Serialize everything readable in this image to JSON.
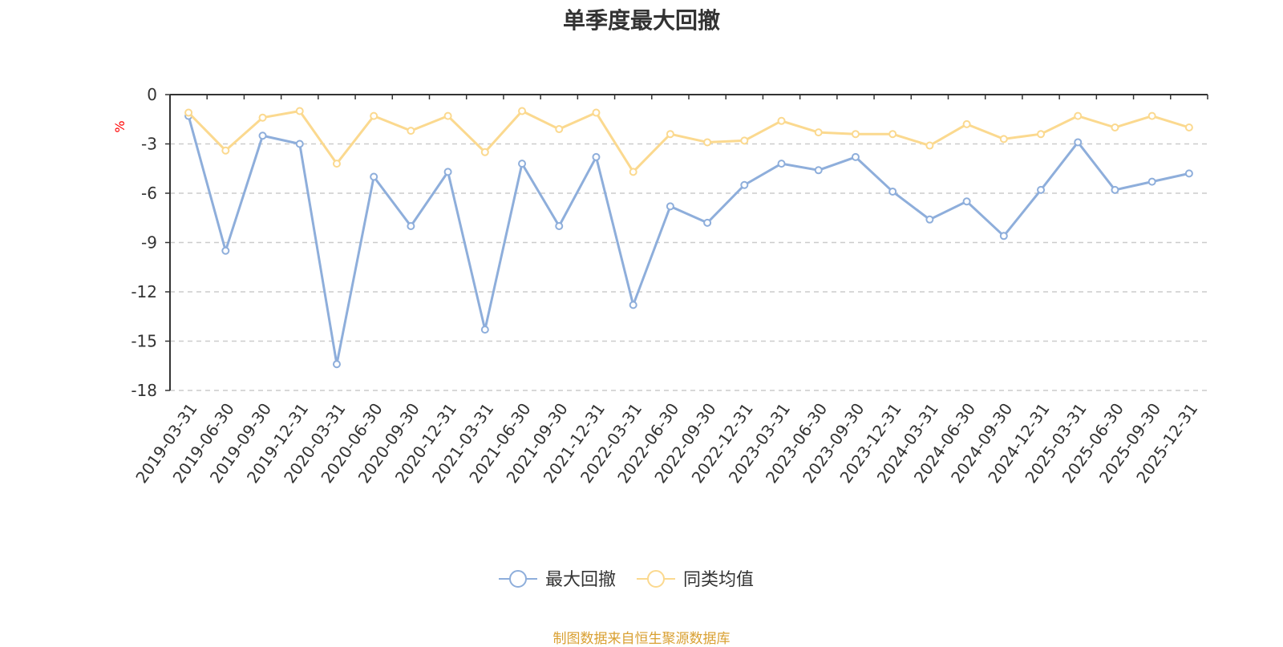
{
  "title": "单季度最大回撤",
  "footer": "制图数据来自恒生聚源数据库",
  "chart_data": {
    "type": "line",
    "title": "单季度最大回撤",
    "ylabel": "%",
    "xlabel": "",
    "ylim": [
      -18,
      0
    ],
    "yticks": [
      0,
      -3,
      -6,
      -9,
      -12,
      -15,
      -18
    ],
    "grid": true,
    "legend_position": "bottom-center",
    "categories": [
      "2019-03-31",
      "2019-06-30",
      "2019-09-30",
      "2019-12-31",
      "2020-03-31",
      "2020-06-30",
      "2020-09-30",
      "2020-12-31",
      "2021-03-31",
      "2021-06-30",
      "2021-09-30",
      "2021-12-31",
      "2022-03-31",
      "2022-06-30",
      "2022-09-30",
      "2022-12-31",
      "2023-03-31",
      "2023-06-30",
      "2023-09-30",
      "2023-12-31",
      "2024-03-31",
      "2024-06-30",
      "2024-09-30",
      "2024-12-31",
      "2025-03-31",
      "2025-06-30",
      "2025-09-30",
      "2025-12-31"
    ],
    "series": [
      {
        "name": "最大回撤",
        "color": "#8eaedb",
        "values": [
          -1.3,
          -9.5,
          -2.5,
          -3.0,
          -16.4,
          -5.0,
          -8.0,
          -4.7,
          -14.3,
          -4.2,
          -8.0,
          -3.8,
          -12.8,
          -6.8,
          -7.8,
          -5.5,
          -4.2,
          -4.6,
          -3.8,
          -5.9,
          -7.6,
          -6.5,
          -8.6,
          -5.8,
          -2.9,
          -5.8,
          -5.3,
          -4.8
        ]
      },
      {
        "name": "同类均值",
        "color": "#fbd98f",
        "values": [
          -1.1,
          -3.4,
          -1.4,
          -1.0,
          -4.2,
          -1.3,
          -2.2,
          -1.3,
          -3.5,
          -1.0,
          -2.1,
          -1.1,
          -4.7,
          -2.4,
          -2.9,
          -2.8,
          -1.6,
          -2.3,
          -2.4,
          -2.4,
          -3.1,
          -1.8,
          -2.7,
          -2.4,
          -1.3,
          -2.0,
          -1.3,
          -2.0
        ]
      }
    ]
  },
  "colors": {
    "axis": "#333333",
    "grid": "#cccccc",
    "ylabel": "#ff0000",
    "footer": "#d9a032",
    "title": "#333333"
  }
}
